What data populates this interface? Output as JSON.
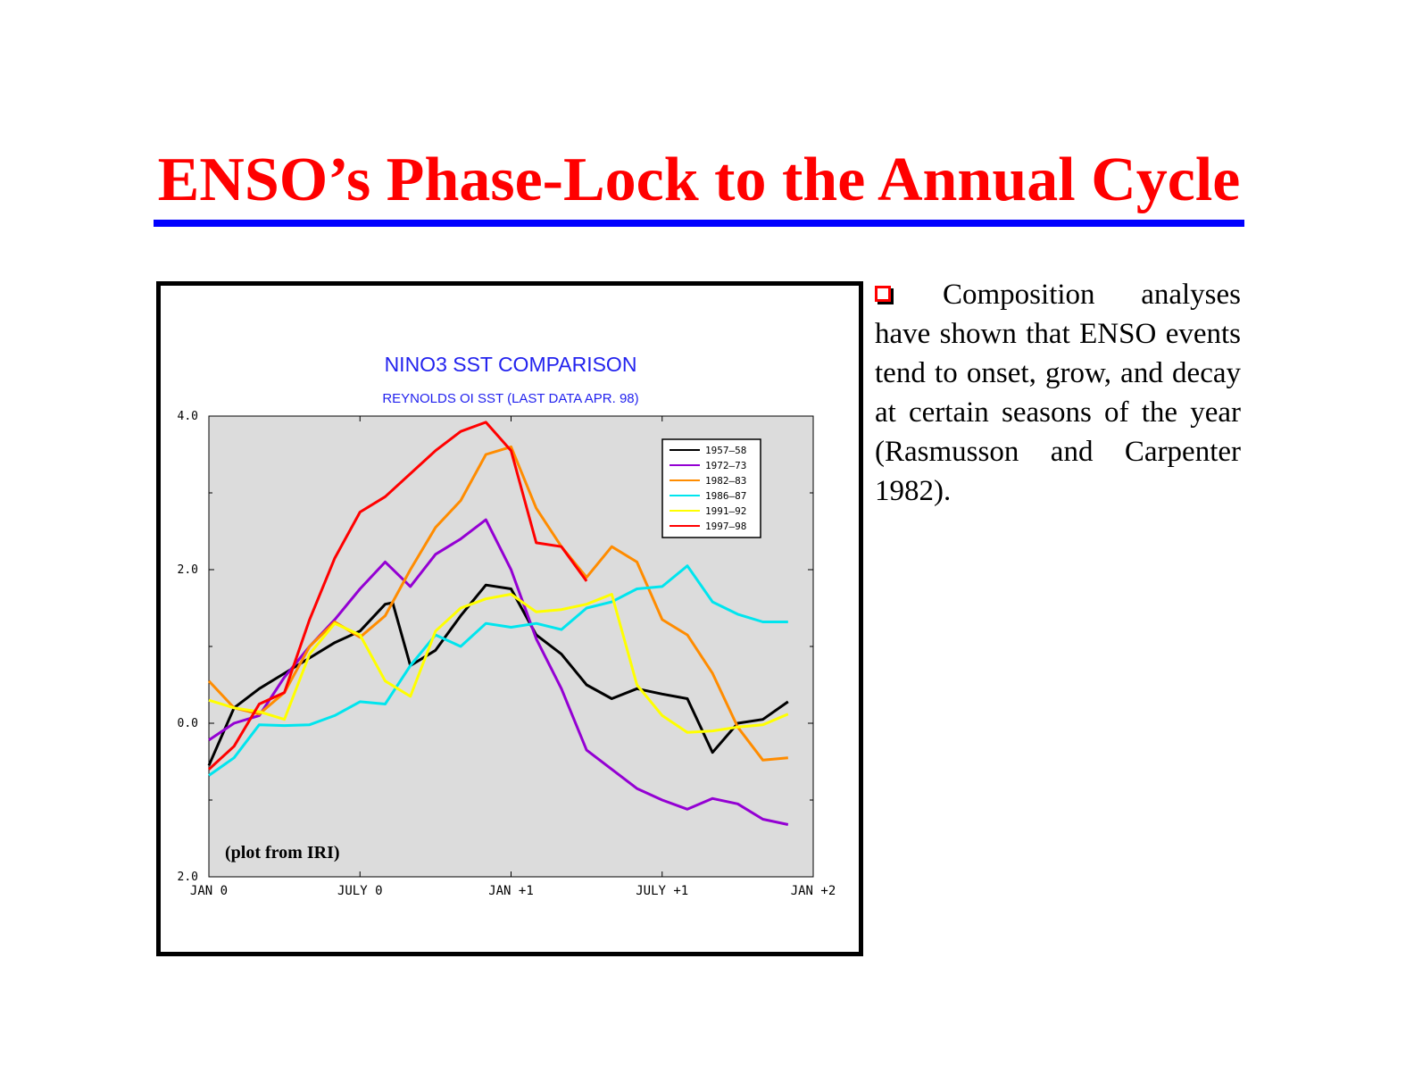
{
  "slide": {
    "title": "ENSO’s Phase-Lock to the Annual Cycle",
    "bullet_text": "Composition analyses have shown that ENSO events tend to onset, grow, and decay at certain seasons of the year (Rasmusson and Carpenter 1982)."
  },
  "colors": {
    "title": "#ff0000",
    "rule": "#0000ff",
    "chart_title": "#2222ee",
    "plot_bg": "#dcdcdc",
    "bullet": "#ff0000"
  },
  "chart_data": {
    "type": "line",
    "title": "NINO3 SST COMPARISON",
    "subtitle": "REYNOLDS OI SST (LAST DATA APR. 98)",
    "annotation": "(plot from IRI)",
    "xlabel": "",
    "ylabel": "",
    "x_ticks": [
      {
        "value": 0,
        "label": "JAN 0"
      },
      {
        "value": 6,
        "label": "JULY 0"
      },
      {
        "value": 12,
        "label": "JAN +1"
      },
      {
        "value": 18,
        "label": "JULY +1"
      },
      {
        "value": 24,
        "label": "JAN +2"
      }
    ],
    "y_ticks": [
      {
        "value": -2,
        "label": "2.0"
      },
      {
        "value": 0,
        "label": "0.0"
      },
      {
        "value": 2,
        "label": "2.0"
      },
      {
        "value": 4,
        "label": "4.0"
      }
    ],
    "xlim": [
      0,
      24
    ],
    "ylim": [
      -2,
      4
    ],
    "legend_position": "top-right",
    "series": [
      {
        "name": "1957–58",
        "color": "#000000",
        "x": [
          0,
          1,
          2,
          3,
          4,
          5,
          6,
          7,
          7.3,
          8,
          9,
          10,
          11,
          12,
          13,
          14,
          15,
          16,
          17,
          18,
          19,
          20,
          21,
          22,
          23
        ],
        "y": [
          -0.55,
          0.2,
          0.45,
          0.65,
          0.85,
          1.05,
          1.2,
          1.55,
          1.57,
          0.75,
          0.95,
          1.4,
          1.8,
          1.75,
          1.15,
          0.9,
          0.5,
          0.32,
          0.45,
          0.38,
          0.32,
          -0.38,
          0.0,
          0.05,
          0.28
        ]
      },
      {
        "name": "1972–73",
        "color": "#9400d3",
        "x": [
          0,
          1,
          2,
          3,
          4,
          5,
          6,
          7,
          8,
          9,
          10,
          11,
          12,
          13,
          14,
          15,
          16,
          17,
          18,
          19,
          20,
          21,
          22,
          23
        ],
        "y": [
          -0.22,
          0.0,
          0.1,
          0.6,
          1.0,
          1.35,
          1.75,
          2.1,
          1.78,
          2.2,
          2.4,
          2.65,
          2.0,
          1.1,
          0.45,
          -0.35,
          -0.6,
          -0.85,
          -1.0,
          -1.12,
          -0.98,
          -1.05,
          -1.25,
          -1.32
        ]
      },
      {
        "name": "1982–83",
        "color": "#ff8c00",
        "x": [
          0,
          1,
          2,
          3,
          4,
          5,
          6,
          7,
          8,
          9,
          10,
          11,
          12,
          13,
          14,
          15,
          16,
          17,
          18,
          19,
          20,
          21,
          22,
          23
        ],
        "y": [
          0.55,
          0.2,
          0.12,
          0.4,
          1.0,
          1.32,
          1.12,
          1.4,
          2.0,
          2.55,
          2.9,
          3.5,
          3.6,
          2.8,
          2.3,
          1.9,
          2.3,
          2.1,
          1.35,
          1.15,
          0.65,
          -0.05,
          -0.48,
          -0.45
        ]
      },
      {
        "name": "1986–87",
        "color": "#00e5ee",
        "x": [
          0,
          1,
          2,
          3,
          4,
          5,
          6,
          7,
          8,
          9,
          10,
          11,
          12,
          13,
          14,
          15,
          16,
          17,
          18,
          19,
          20,
          21,
          22,
          23
        ],
        "y": [
          -0.68,
          -0.45,
          -0.02,
          -0.03,
          -0.02,
          0.1,
          0.28,
          0.25,
          0.75,
          1.15,
          1.0,
          1.3,
          1.25,
          1.3,
          1.22,
          1.5,
          1.58,
          1.75,
          1.78,
          2.05,
          1.58,
          1.42,
          1.32,
          1.32
        ]
      },
      {
        "name": "1991–92",
        "color": "#ffff00",
        "x": [
          0,
          1,
          2,
          3,
          4,
          5,
          6,
          7,
          8,
          9,
          10,
          11,
          12,
          13,
          14,
          15,
          16,
          17,
          18,
          19,
          20,
          21,
          22,
          23
        ],
        "y": [
          0.3,
          0.2,
          0.15,
          0.05,
          0.9,
          1.3,
          1.15,
          0.55,
          0.35,
          1.2,
          1.5,
          1.62,
          1.68,
          1.45,
          1.48,
          1.55,
          1.68,
          0.5,
          0.1,
          -0.12,
          -0.1,
          -0.05,
          -0.02,
          0.12
        ]
      },
      {
        "name": "1997–98",
        "color": "#ff0000",
        "x": [
          0,
          1,
          2,
          3,
          4,
          5,
          6,
          7,
          8,
          9,
          10,
          11,
          12,
          13,
          14,
          15
        ],
        "y": [
          -0.6,
          -0.3,
          0.25,
          0.4,
          1.35,
          2.15,
          2.75,
          2.95,
          3.25,
          3.55,
          3.8,
          3.92,
          3.55,
          2.35,
          2.3,
          1.85
        ]
      }
    ]
  }
}
